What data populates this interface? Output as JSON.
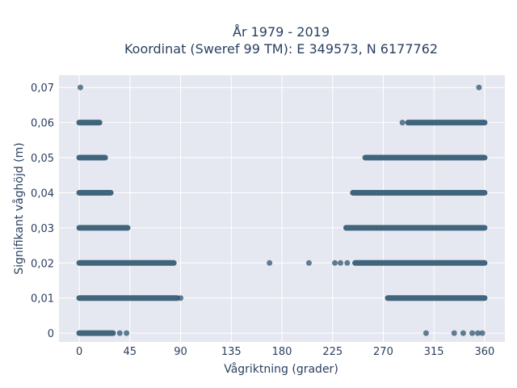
{
  "chart_data": {
    "type": "scatter",
    "title_line1": "År 1979 - 2019",
    "title_line2": "Koordinat (Sweref 99 TM): E 349573, N 6177762",
    "xlabel": "Vågriktning (grader)",
    "ylabel": "Signifikant våghöjd (m)",
    "xlim": [
      -18,
      378
    ],
    "ylim": [
      -0.0025,
      0.0735
    ],
    "x_ticks": [
      0,
      45,
      90,
      135,
      180,
      225,
      270,
      315,
      360
    ],
    "y_ticks": [
      0,
      0.01,
      0.02,
      0.03,
      0.04,
      0.05,
      0.06,
      0.07
    ],
    "y_tick_labels": [
      "0",
      "0,01",
      "0,02",
      "0,03",
      "0,04",
      "0,05",
      "0,06",
      "0,07"
    ],
    "grid": true,
    "marker_color": "#2f5570",
    "background": "#e5e8f0",
    "bands": [
      {
        "y": 0.0,
        "ranges": [
          [
            0,
            30
          ]
        ]
      },
      {
        "y": 0.01,
        "ranges": [
          [
            0,
            87
          ],
          [
            274,
            360
          ]
        ]
      },
      {
        "y": 0.02,
        "ranges": [
          [
            0,
            84
          ],
          [
            245,
            360
          ]
        ]
      },
      {
        "y": 0.03,
        "ranges": [
          [
            0,
            43
          ],
          [
            237,
            360
          ]
        ]
      },
      {
        "y": 0.04,
        "ranges": [
          [
            0,
            28
          ],
          [
            243,
            360
          ]
        ]
      },
      {
        "y": 0.05,
        "ranges": [
          [
            0,
            23
          ],
          [
            254,
            360
          ]
        ]
      },
      {
        "y": 0.06,
        "ranges": [
          [
            0,
            18
          ],
          [
            292,
            360
          ]
        ]
      }
    ],
    "points": [
      {
        "x": 1,
        "y": 0.07
      },
      {
        "x": 355,
        "y": 0.07
      },
      {
        "x": 287,
        "y": 0.06
      },
      {
        "x": 90,
        "y": 0.01
      },
      {
        "x": 169,
        "y": 0.02
      },
      {
        "x": 204,
        "y": 0.02
      },
      {
        "x": 227,
        "y": 0.02
      },
      {
        "x": 232,
        "y": 0.02
      },
      {
        "x": 238,
        "y": 0.02
      },
      {
        "x": 36,
        "y": 0.0
      },
      {
        "x": 42,
        "y": 0.0
      },
      {
        "x": 308,
        "y": 0.0
      },
      {
        "x": 333,
        "y": 0.0
      },
      {
        "x": 341,
        "y": 0.0
      },
      {
        "x": 349,
        "y": 0.0
      },
      {
        "x": 354,
        "y": 0.0
      },
      {
        "x": 358,
        "y": 0.0
      }
    ]
  }
}
